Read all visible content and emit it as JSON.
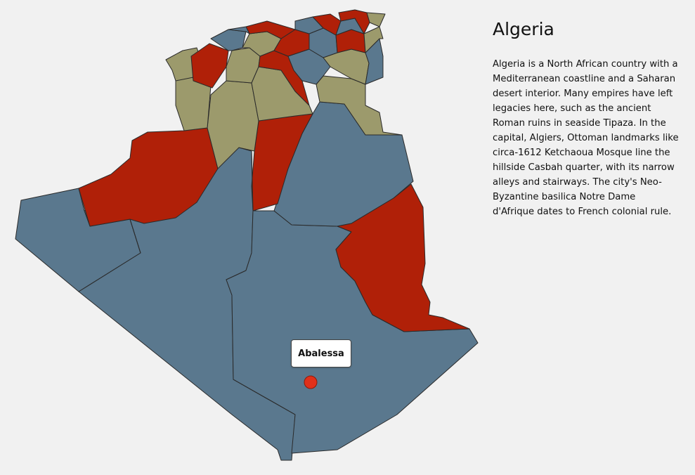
{
  "country": {
    "name": "Algeria",
    "description": "Algeria is a North African country with a Mediterranean coastline and a Saharan desert interior. Many empires have left legacies here, such as the ancient Roman ruins in seaside Tipaza. In the capital, Algiers, Ottoman landmarks like circa-1612 Ketchaoua Mosque line the hillside Casbah quarter, with its narrow alleys and stairways. The city's Neo-Byzantine basilica Notre Dame d'Afrique dates to French colonial rule."
  },
  "map": {
    "colors": {
      "blue_gray": "#5a788e",
      "red": "#b02008",
      "olive": "#9c9a6c",
      "marker": "#e0301a",
      "background": "#f1f1f1"
    },
    "hover_label": "Abalessa",
    "marker_name": "location-marker"
  }
}
